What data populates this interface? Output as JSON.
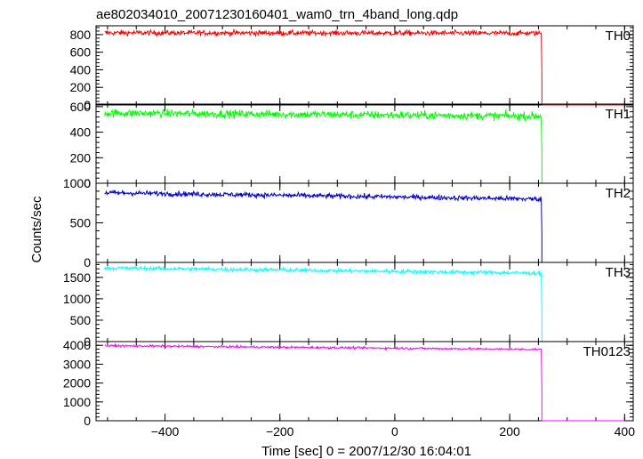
{
  "chart_data": {
    "type": "line",
    "title": "ae802034010_20071230160401_wam0_trn_4band_long.qdp",
    "xlabel": "Time [sec] 0 = 2007/12/30 16:04:01",
    "ylabel": "Counts/sec",
    "xlim": [
      -520,
      415
    ],
    "x_ticks": [
      -400,
      -200,
      0,
      200,
      400
    ],
    "drop_time": 255,
    "x_start": -505,
    "x_end": 400,
    "panels": [
      {
        "name": "TH0",
        "color": "#ff0000",
        "ylim": [
          0,
          900
        ],
        "y_ticks": [
          0,
          200,
          400,
          600,
          800
        ],
        "level_start": 820,
        "level_end": 815,
        "noise": 28,
        "after_value": 0
      },
      {
        "name": "TH1",
        "color": "#00ff00",
        "ylim": [
          0,
          620
        ],
        "y_ticks": [
          0,
          200,
          400,
          600
        ],
        "level_start": 550,
        "level_end": 525,
        "noise": 30,
        "after_value": 0
      },
      {
        "name": "TH2",
        "color": "#0000cc",
        "ylim": [
          0,
          1000
        ],
        "y_ticks": [
          0,
          500,
          1000
        ],
        "level_start": 880,
        "level_end": 800,
        "noise": 30,
        "after_value": 0
      },
      {
        "name": "TH3",
        "color": "#00ffff",
        "ylim": [
          0,
          1850
        ],
        "y_ticks": [
          0,
          500,
          1000,
          1500
        ],
        "level_start": 1720,
        "level_end": 1600,
        "noise": 45,
        "after_value": 0
      },
      {
        "name": "TH0123",
        "color": "#ff00ff",
        "ylim": [
          0,
          4200
        ],
        "y_ticks": [
          0,
          1000,
          2000,
          3000,
          4000
        ],
        "level_start": 3980,
        "level_end": 3780,
        "noise": 55,
        "after_value": 0
      }
    ]
  }
}
